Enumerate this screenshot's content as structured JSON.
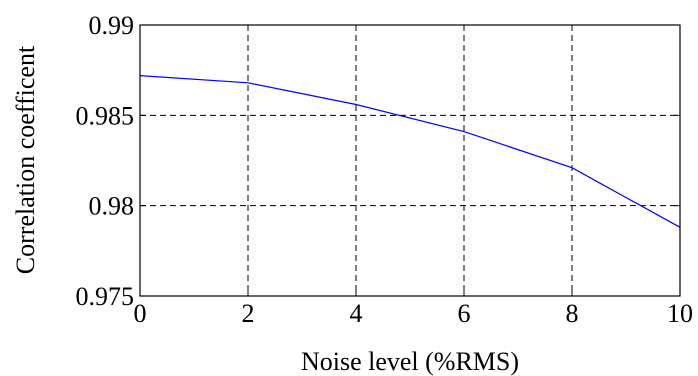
{
  "chart_data": {
    "type": "line",
    "title": "",
    "xlabel": "Noise level (%RMS)",
    "ylabel": "Correlation coefficent",
    "xlim": [
      0,
      10
    ],
    "ylim": [
      0.975,
      0.99
    ],
    "xticks": [
      0,
      2,
      4,
      6,
      8,
      10
    ],
    "xtick_labels": [
      "0",
      "2",
      "4",
      "6",
      "8",
      "10"
    ],
    "yticks": [
      0.975,
      0.98,
      0.985,
      0.99
    ],
    "ytick_labels": [
      "0.975",
      "0.98",
      "0.985",
      "0.99"
    ],
    "grid": true,
    "grid_style": "dashed",
    "legend": "none",
    "series": [
      {
        "color": "#0000ff",
        "x": [
          0,
          2,
          4,
          6,
          8,
          10
        ],
        "y": [
          0.9872,
          0.9868,
          0.9856,
          0.9841,
          0.9821,
          0.9788
        ]
      }
    ]
  }
}
